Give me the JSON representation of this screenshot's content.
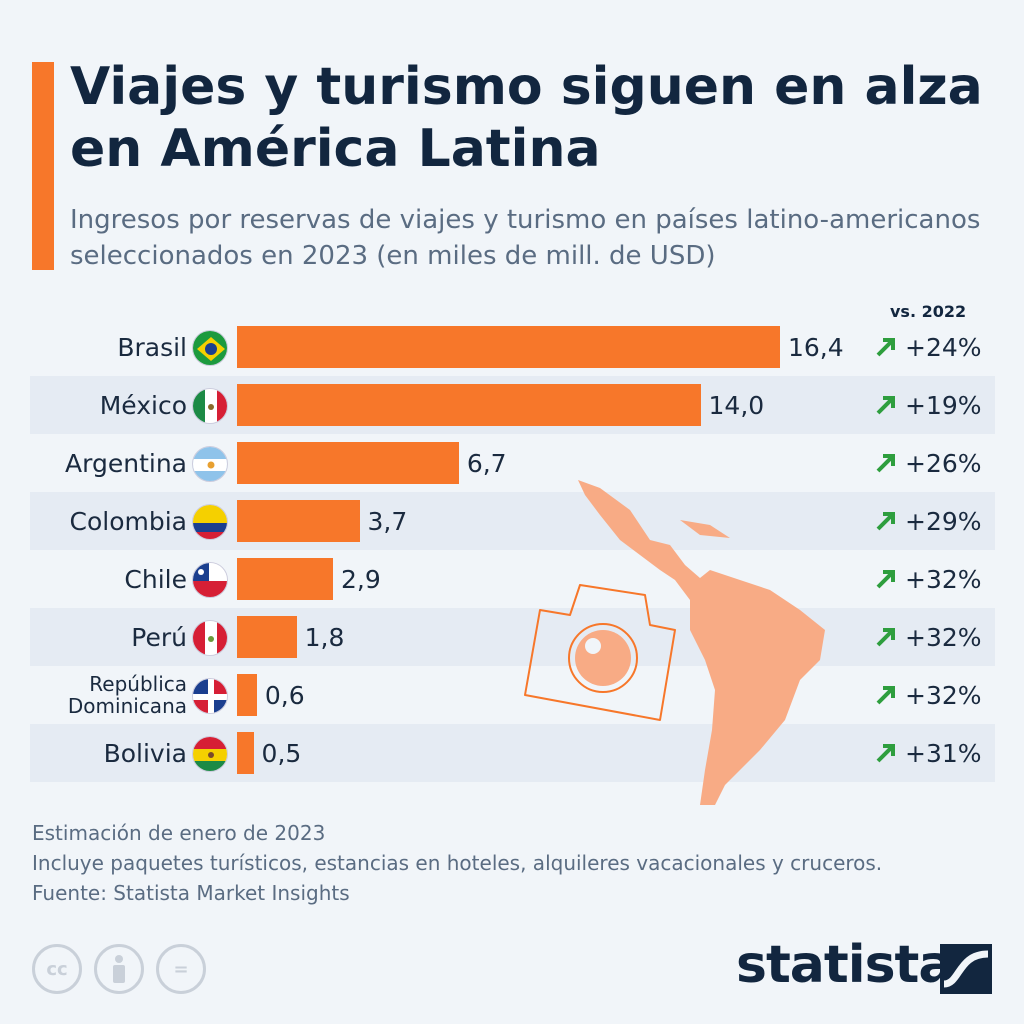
{
  "header": {
    "title": "Viajes y turismo siguen en alza en América Latina",
    "subtitle": "Ingresos por reservas de viajes y turismo en países latino-americanos seleccionados en 2023 (en miles de mill. de USD)",
    "accent_color": "#f7772a"
  },
  "chart_data": {
    "type": "bar",
    "orientation": "horizontal",
    "title": "Viajes y turismo siguen en alza en América Latina",
    "categories": [
      "Brasil",
      "México",
      "Argentina",
      "Colombia",
      "Chile",
      "Perú",
      "República Dominicana",
      "Bolivia"
    ],
    "values": [
      16.4,
      14.0,
      6.7,
      3.7,
      2.9,
      1.8,
      0.6,
      0.5
    ],
    "value_labels": [
      "16,4",
      "14,0",
      "6,7",
      "3,7",
      "2,9",
      "1,8",
      "0,6",
      "0,5"
    ],
    "change_header": "vs. 2022",
    "changes": [
      "+24%",
      "+19%",
      "+26%",
      "+29%",
      "+32%",
      "+32%",
      "+32%",
      "+31%"
    ],
    "bar_color": "#f7772a",
    "up_arrow_color": "#2e9e3e",
    "grid": false
  },
  "footer": {
    "notes": [
      "Estimación de enero de 2023",
      "Incluye paquetes turísticos, estancias en hoteles, alquileres vacacionales y cruceros.",
      "Fuente: Statista Market Insights"
    ],
    "cc_icons": [
      "cc",
      "by",
      "nd"
    ],
    "cc_label": "cc",
    "nd_label": "=",
    "brand": "statista"
  }
}
